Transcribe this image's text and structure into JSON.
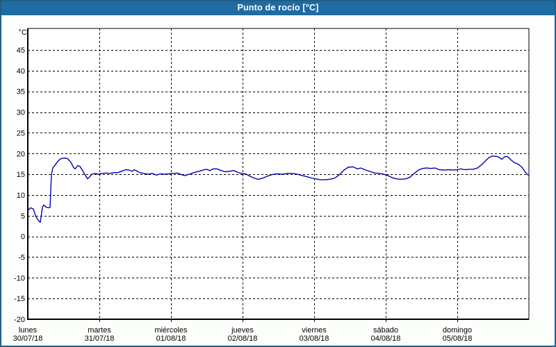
{
  "window": {
    "title": "Punto de rocío [°C]"
  },
  "colors": {
    "titlebar_bg": "#1f6ba3",
    "titlebar_text": "#ffffff",
    "frame_border": "#215d85",
    "page_bg": "#fcfefb",
    "plot_bg": "#ffffff",
    "grid": "#000000",
    "axis": "#000000",
    "label_text": "#000000",
    "line": "#0000b3"
  },
  "chart_data": {
    "type": "line",
    "title": "Punto de rocío [°C]",
    "grid": "dashed",
    "legend": "none",
    "y_axis": {
      "unit": "°C",
      "min": -20,
      "max": 50.2,
      "tick_step": 5,
      "tick_values": [
        45,
        40,
        35,
        30,
        25,
        20,
        15,
        10,
        5,
        0,
        -5,
        -10,
        -15,
        -20
      ]
    },
    "x_axis": {
      "days_visible": 7,
      "categories": [
        {
          "day": "lunes",
          "date": "30/07/18"
        },
        {
          "day": "martes",
          "date": "31/07/18"
        },
        {
          "day": "miércoles",
          "date": "01/08/18"
        },
        {
          "day": "jueves",
          "date": "02/08/18"
        },
        {
          "day": "viernes",
          "date": "03/08/18"
        },
        {
          "day": "sábado",
          "date": "04/08/18"
        },
        {
          "day": "domingo",
          "date": "05/08/18"
        }
      ]
    },
    "series": [
      {
        "name": "Punto de rocío",
        "color": "#0000b3",
        "points_day_value": [
          [
            0.0,
            6.2
          ],
          [
            0.039,
            6.9
          ],
          [
            0.078,
            6.6
          ],
          [
            0.117,
            4.6
          ],
          [
            0.155,
            3.7
          ],
          [
            0.175,
            3.4
          ],
          [
            0.204,
            7.0
          ],
          [
            0.223,
            7.6
          ],
          [
            0.252,
            7.1
          ],
          [
            0.291,
            6.9
          ],
          [
            0.311,
            7.0
          ],
          [
            0.33,
            15.0
          ],
          [
            0.35,
            16.5
          ],
          [
            0.388,
            17.4
          ],
          [
            0.427,
            18.3
          ],
          [
            0.466,
            18.8
          ],
          [
            0.515,
            18.9
          ],
          [
            0.553,
            18.8
          ],
          [
            0.602,
            17.9
          ],
          [
            0.641,
            16.6
          ],
          [
            0.66,
            16.3
          ],
          [
            0.699,
            17.1
          ],
          [
            0.728,
            16.9
          ],
          [
            0.767,
            15.8
          ],
          [
            0.806,
            14.7
          ],
          [
            0.835,
            13.9
          ],
          [
            0.864,
            14.4
          ],
          [
            0.893,
            15.0
          ],
          [
            0.942,
            15.2
          ],
          [
            0.981,
            15.0
          ],
          [
            1.029,
            15.2
          ],
          [
            1.087,
            15.3
          ],
          [
            1.146,
            15.2
          ],
          [
            1.204,
            15.4
          ],
          [
            1.262,
            15.4
          ],
          [
            1.32,
            15.8
          ],
          [
            1.369,
            16.1
          ],
          [
            1.417,
            16.0
          ],
          [
            1.456,
            15.7
          ],
          [
            1.485,
            16.1
          ],
          [
            1.524,
            15.8
          ],
          [
            1.563,
            15.4
          ],
          [
            1.621,
            15.2
          ],
          [
            1.68,
            15.0
          ],
          [
            1.738,
            15.2
          ],
          [
            1.796,
            14.8
          ],
          [
            1.854,
            15.1
          ],
          [
            1.913,
            15.0
          ],
          [
            1.971,
            15.1
          ],
          [
            2.029,
            15.2
          ],
          [
            2.087,
            15.3
          ],
          [
            2.146,
            14.9
          ],
          [
            2.194,
            14.7
          ],
          [
            2.252,
            15.0
          ],
          [
            2.32,
            15.4
          ],
          [
            2.388,
            15.7
          ],
          [
            2.447,
            16.0
          ],
          [
            2.495,
            16.2
          ],
          [
            2.544,
            15.9
          ],
          [
            2.592,
            16.3
          ],
          [
            2.641,
            16.3
          ],
          [
            2.699,
            15.9
          ],
          [
            2.757,
            15.6
          ],
          [
            2.816,
            15.7
          ],
          [
            2.874,
            15.9
          ],
          [
            2.932,
            15.5
          ],
          [
            2.981,
            15.2
          ],
          [
            3.039,
            15.1
          ],
          [
            3.097,
            14.6
          ],
          [
            3.155,
            14.1
          ],
          [
            3.214,
            13.8
          ],
          [
            3.272,
            14.0
          ],
          [
            3.34,
            14.5
          ],
          [
            3.408,
            14.9
          ],
          [
            3.476,
            15.1
          ],
          [
            3.553,
            15.0
          ],
          [
            3.631,
            15.2
          ],
          [
            3.699,
            15.2
          ],
          [
            3.767,
            15.0
          ],
          [
            3.835,
            14.7
          ],
          [
            3.903,
            14.4
          ],
          [
            3.961,
            14.1
          ],
          [
            4.019,
            13.9
          ],
          [
            4.087,
            13.7
          ],
          [
            4.155,
            13.7
          ],
          [
            4.223,
            13.8
          ],
          [
            4.291,
            14.1
          ],
          [
            4.359,
            15.0
          ],
          [
            4.417,
            16.0
          ],
          [
            4.476,
            16.7
          ],
          [
            4.544,
            16.8
          ],
          [
            4.602,
            16.3
          ],
          [
            4.65,
            16.5
          ],
          [
            4.709,
            16.1
          ],
          [
            4.777,
            15.7
          ],
          [
            4.845,
            15.3
          ],
          [
            4.913,
            15.2
          ],
          [
            4.971,
            15.0
          ],
          [
            5.029,
            14.7
          ],
          [
            5.087,
            14.2
          ],
          [
            5.146,
            13.9
          ],
          [
            5.214,
            13.8
          ],
          [
            5.282,
            13.9
          ],
          [
            5.34,
            14.3
          ],
          [
            5.398,
            15.2
          ],
          [
            5.456,
            16.0
          ],
          [
            5.515,
            16.4
          ],
          [
            5.573,
            16.5
          ],
          [
            5.631,
            16.4
          ],
          [
            5.689,
            16.5
          ],
          [
            5.748,
            16.1
          ],
          [
            5.816,
            16.0
          ],
          [
            5.884,
            16.1
          ],
          [
            5.942,
            16.0
          ],
          [
            6.0,
            16.1
          ],
          [
            6.049,
            16.3
          ],
          [
            6.107,
            16.1
          ],
          [
            6.165,
            16.2
          ],
          [
            6.223,
            16.2
          ],
          [
            6.282,
            16.5
          ],
          [
            6.34,
            17.3
          ],
          [
            6.398,
            18.3
          ],
          [
            6.447,
            19.1
          ],
          [
            6.495,
            19.4
          ],
          [
            6.553,
            19.3
          ],
          [
            6.592,
            19.0
          ],
          [
            6.621,
            18.6
          ],
          [
            6.66,
            19.2
          ],
          [
            6.699,
            19.3
          ],
          [
            6.748,
            18.5
          ],
          [
            6.796,
            17.8
          ],
          [
            6.854,
            17.4
          ],
          [
            6.903,
            16.7
          ],
          [
            6.942,
            15.7
          ],
          [
            6.981,
            14.9
          ],
          [
            7.0,
            14.8
          ]
        ]
      }
    ]
  }
}
